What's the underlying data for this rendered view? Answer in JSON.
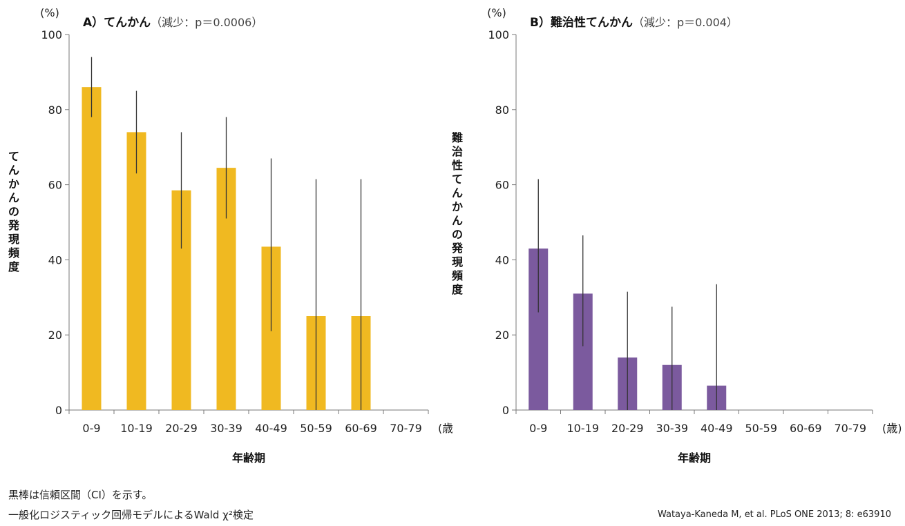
{
  "chart_data": [
    {
      "type": "bar",
      "title": "A）てんかん",
      "subtitle": "（減少：p＝0.0006）",
      "xlabel": "年齢期",
      "ylabel": "てんかんの発現頻度",
      "y_unit": "(%)",
      "x_unit": "(歳)",
      "ylim": [
        0,
        100
      ],
      "yticks": [
        "0",
        "20",
        "40",
        "60",
        "80",
        "100"
      ],
      "categories": [
        "0-9",
        "10-19",
        "20-29",
        "30-39",
        "40-49",
        "50-59",
        "60-69",
        "70-79"
      ],
      "values": [
        86,
        74,
        58.5,
        64.5,
        43.5,
        25,
        25,
        null
      ],
      "ci_low": [
        78,
        63,
        43,
        51,
        21,
        0,
        0,
        null
      ],
      "ci_high": [
        94,
        85,
        74,
        78,
        67,
        61.5,
        61.5,
        null
      ],
      "color": "#f0b921"
    },
    {
      "type": "bar",
      "title": "B）難治性てんかん",
      "subtitle": "（減少：p＝0.004）",
      "xlabel": "年齢期",
      "ylabel": "難治性てんかんの発現頻度",
      "y_unit": "(%)",
      "x_unit": "(歳)",
      "ylim": [
        0,
        100
      ],
      "yticks": [
        "0",
        "20",
        "40",
        "60",
        "80",
        "100"
      ],
      "categories": [
        "0-9",
        "10-19",
        "20-29",
        "30-39",
        "40-49",
        "50-59",
        "60-69",
        "70-79"
      ],
      "values": [
        43,
        31,
        14,
        12,
        6.5,
        null,
        null,
        null
      ],
      "ci_low": [
        26,
        17,
        0,
        0,
        0,
        null,
        null,
        null
      ],
      "ci_high": [
        61.5,
        46.5,
        31.5,
        27.5,
        33.5,
        null,
        null,
        null
      ],
      "color": "#7b5a9e"
    }
  ],
  "footnotes": {
    "note1": "黒棒は信頼区間（CI）を示す。",
    "note2": "一般化ロジスティック回帰モデルによるWald χ²検定"
  },
  "citation": "Wataya-Kaneda M, et al. PLoS ONE 2013; 8: e63910"
}
